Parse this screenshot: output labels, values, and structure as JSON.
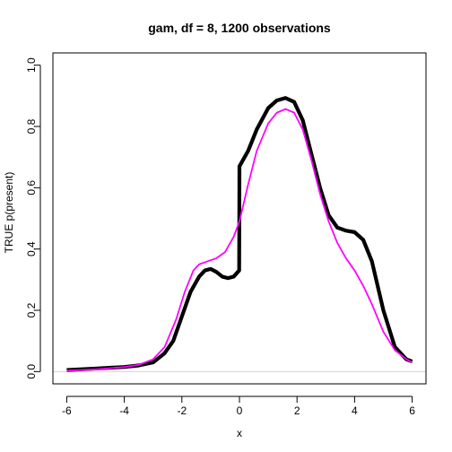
{
  "chart_data": {
    "type": "line",
    "title": "gam, df = 8, 1200 observations",
    "xlabel": "x",
    "ylabel": "TRUE p(present)",
    "xlim": [
      -6.48,
      6.48
    ],
    "ylim": [
      -0.04,
      1.04
    ],
    "x_ticks": [
      "-6",
      "-4",
      "-2",
      "0",
      "2",
      "4",
      "6"
    ],
    "y_ticks": [
      "0.0",
      "0.2",
      "0.4",
      "0.6",
      "0.8",
      "1.0"
    ],
    "reference_line": {
      "y": 0,
      "color": "#d3d3d3"
    },
    "grid": false,
    "legend": "none",
    "series": [
      {
        "color": "#000000",
        "x": [
          -6,
          -5,
          -4,
          -3.5,
          -3,
          -2.6,
          -2.3,
          -2,
          -1.7,
          -1.4,
          -1.2,
          -1.0,
          -0.8,
          -0.6,
          -0.4,
          -0.2,
          -0.01,
          0.0,
          0.3,
          0.6,
          1.0,
          1.3,
          1.6,
          1.9,
          2.2,
          2.5,
          2.8,
          3.1,
          3.4,
          3.7,
          4.0,
          4.3,
          4.6,
          5.0,
          5.4,
          5.8,
          6.0
        ],
        "y": [
          0.005,
          0.01,
          0.015,
          0.02,
          0.03,
          0.06,
          0.1,
          0.18,
          0.26,
          0.31,
          0.33,
          0.335,
          0.325,
          0.31,
          0.305,
          0.31,
          0.33,
          0.67,
          0.72,
          0.79,
          0.86,
          0.885,
          0.893,
          0.88,
          0.82,
          0.71,
          0.6,
          0.51,
          0.47,
          0.46,
          0.455,
          0.43,
          0.36,
          0.2,
          0.08,
          0.04,
          0.033
        ]
      },
      {
        "color": "#ff00ff",
        "x": [
          -6,
          -5,
          -4,
          -3.5,
          -3,
          -2.6,
          -2.2,
          -1.9,
          -1.6,
          -1.4,
          -1.1,
          -0.8,
          -0.5,
          -0.2,
          0.0,
          0.3,
          0.6,
          1.0,
          1.3,
          1.6,
          1.9,
          2.2,
          2.5,
          2.8,
          3.1,
          3.4,
          3.7,
          4.0,
          4.3,
          4.6,
          5.0,
          5.4,
          5.8,
          6.0
        ],
        "y": [
          0.003,
          0.007,
          0.015,
          0.022,
          0.04,
          0.08,
          0.17,
          0.26,
          0.33,
          0.35,
          0.36,
          0.37,
          0.39,
          0.44,
          0.49,
          0.61,
          0.72,
          0.81,
          0.845,
          0.857,
          0.845,
          0.79,
          0.69,
          0.58,
          0.49,
          0.42,
          0.37,
          0.33,
          0.28,
          0.22,
          0.13,
          0.07,
          0.04,
          0.03
        ]
      }
    ]
  }
}
